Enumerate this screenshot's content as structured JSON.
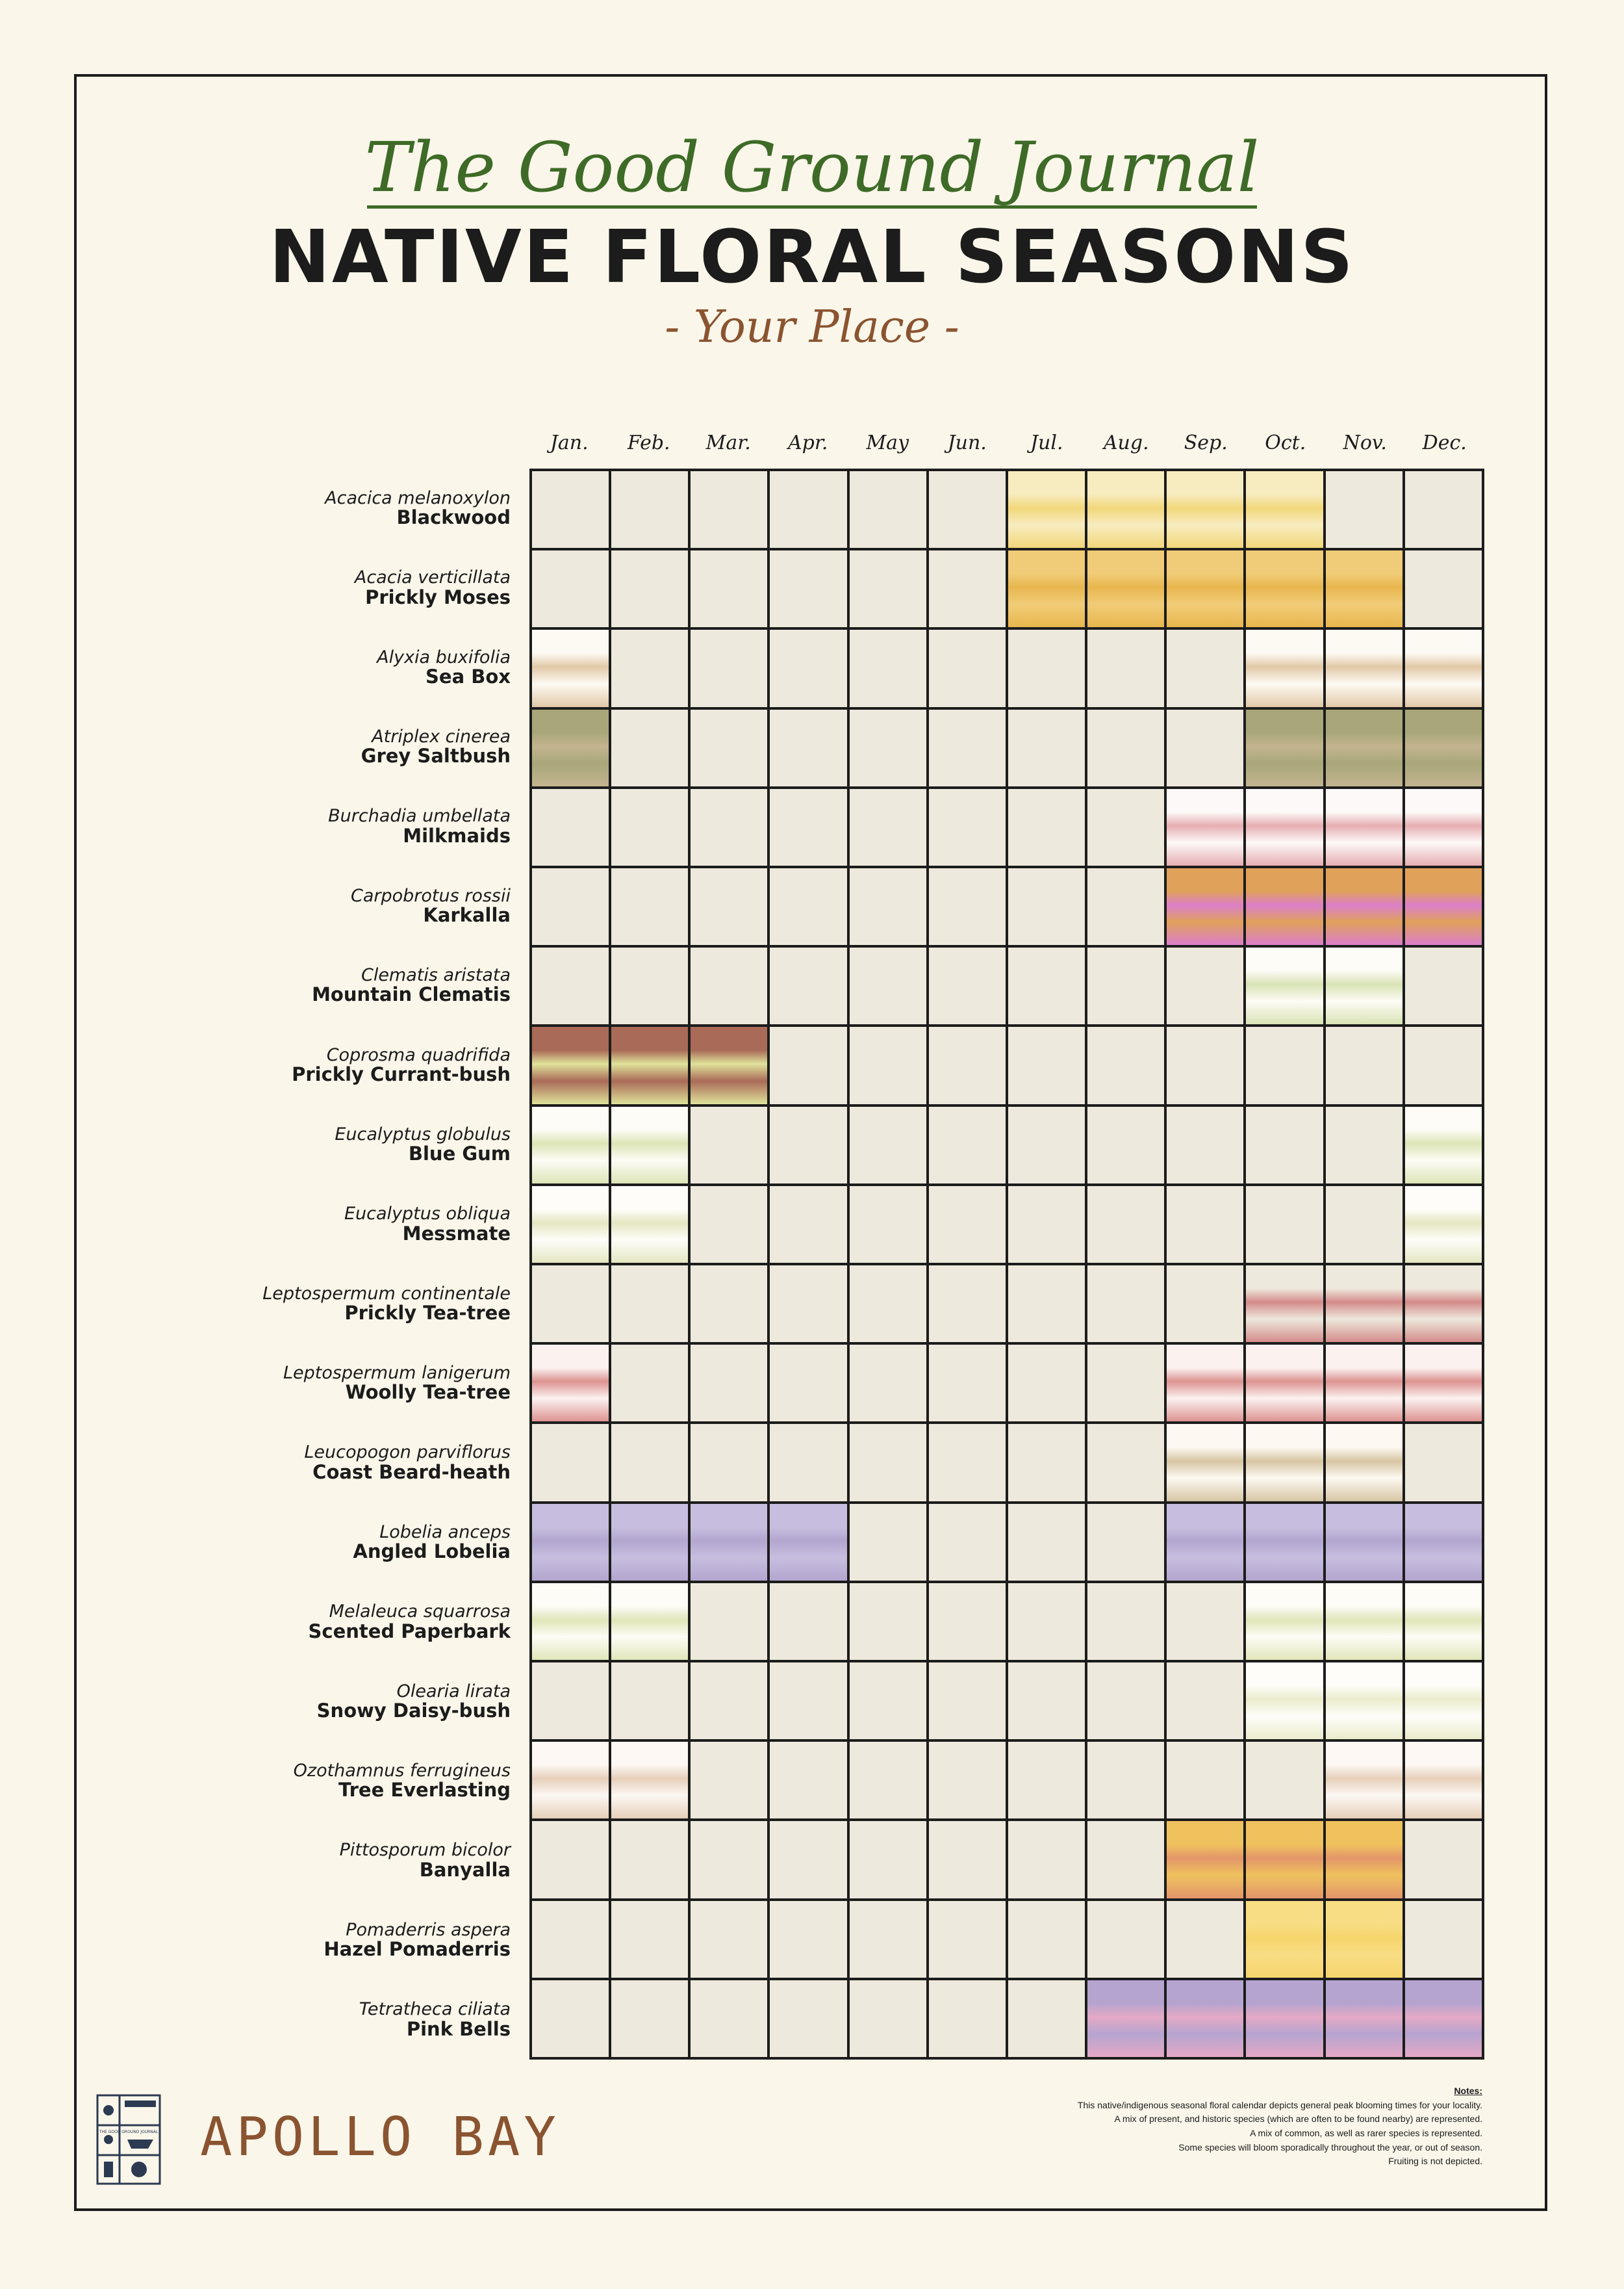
{
  "header": {
    "journal": "The Good Ground Journal",
    "title": "NATIVE FLORAL SEASONS",
    "subtitle": "- Your Place -"
  },
  "months": [
    "Jan.",
    "Feb.",
    "Mar.",
    "Apr.",
    "May",
    "Jun.",
    "Jul.",
    "Aug.",
    "Sep.",
    "Oct.",
    "Nov.",
    "Dec."
  ],
  "species": [
    {
      "scientific": "Acacica melanoxylon",
      "common": "Blackwood",
      "months": [
        7,
        8,
        9,
        10
      ],
      "color": "#f2d77a",
      "base": "#f7ecc0"
    },
    {
      "scientific": "Acacia verticillata",
      "common": "Prickly Moses",
      "months": [
        7,
        8,
        9,
        10,
        11
      ],
      "color": "#e8b64e",
      "base": "#f1cc78"
    },
    {
      "scientific": "Alyxia buxifolia",
      "common": "Sea Box",
      "months": [
        1,
        10,
        11,
        12
      ],
      "color": "#e2c9a8",
      "base": "#fdfaf3"
    },
    {
      "scientific": "Atriplex cinerea",
      "common": "Grey Saltbush",
      "months": [
        1,
        10,
        11,
        12
      ],
      "color": "#c3b48f",
      "base": "#a9a77a"
    },
    {
      "scientific": "Burchadia umbellata",
      "common": "Milkmaids",
      "months": [
        9,
        10,
        11,
        12
      ],
      "color": "#e6aeb1",
      "base": "#fdf9f8"
    },
    {
      "scientific": "Carpobrotus rossii",
      "common": "Karkalla",
      "months": [
        9,
        10,
        11,
        12
      ],
      "color": "#dc7fcb",
      "base": "#e0a15a"
    },
    {
      "scientific": "Clematis aristata",
      "common": "Mountain Clematis",
      "months": [
        10,
        11
      ],
      "color": "#d9e2b5",
      "base": "#fdfcf6"
    },
    {
      "scientific": "Coprosma quadrifida",
      "common": "Prickly Currant-bush",
      "months": [
        1,
        2,
        3
      ],
      "color": "#dfe39a",
      "base": "#a96a57"
    },
    {
      "scientific": "Eucalyptus globulus",
      "common": "Blue Gum",
      "months": [
        1,
        2,
        12
      ],
      "color": "#dde5b7",
      "base": "#fdfcf6"
    },
    {
      "scientific": "Eucalyptus obliqua",
      "common": "Messmate",
      "months": [
        1,
        2,
        12
      ],
      "color": "#e5e7c2",
      "base": "#fefdf9"
    },
    {
      "scientific": "Leptospermum continentale",
      "common": "Prickly Tea-tree",
      "months": [
        10,
        11,
        12
      ],
      "color": "#d48b8a",
      "base": "#eee9dd"
    },
    {
      "scientific": "Leptospermum lanigerum",
      "common": "Woolly Tea-tree",
      "months": [
        1,
        9,
        10,
        11,
        12
      ],
      "color": "#dd9391",
      "base": "#fbf2f0"
    },
    {
      "scientific": "Leucopogon parviflorus",
      "common": "Coast Beard-heath",
      "months": [
        9,
        10,
        11
      ],
      "color": "#d7c5a3",
      "base": "#fdf9f2"
    },
    {
      "scientific": "Lobelia anceps",
      "common": "Angled Lobelia",
      "months": [
        1,
        2,
        3,
        4,
        9,
        10,
        11,
        12
      ],
      "color": "#b3a6cf",
      "base": "#c7bedf"
    },
    {
      "scientific": "Melaleuca squarrosa",
      "common": "Scented Paperbark",
      "months": [
        1,
        2,
        10,
        11,
        12
      ],
      "color": "#e1e6b9",
      "base": "#fdfcf6"
    },
    {
      "scientific": "Olearia lirata",
      "common": "Snowy Daisy-bush",
      "months": [
        10,
        11,
        12
      ],
      "color": "#ebeccc",
      "base": "#fefdfa"
    },
    {
      "scientific": "Ozothamnus ferrugineus",
      "common": "Tree Everlasting",
      "months": [
        1,
        2,
        11,
        12
      ],
      "color": "#e6cfba",
      "base": "#fdf8f3"
    },
    {
      "scientific": "Pittosporum bicolor",
      "common": "Banyalla",
      "months": [
        9,
        10,
        11
      ],
      "color": "#e3956a",
      "base": "#efc25e"
    },
    {
      "scientific": "Pomaderris aspera",
      "common": "Hazel Pomaderris",
      "months": [
        10,
        11
      ],
      "color": "#f6d56c",
      "base": "#f8dd84"
    },
    {
      "scientific": "Tetratheca ciliata",
      "common": "Pink Bells",
      "months": [
        8,
        9,
        10,
        11,
        12
      ],
      "color": "#e5a9c5",
      "base": "#b6a4d0"
    }
  ],
  "empty_cell_color": "#eee9dd",
  "notes": {
    "heading": "Notes:",
    "lines": [
      "This native/indigenous seasonal floral calendar depicts general peak blooming times for your locality.",
      "A mix of present, and historic species (which are often to be found nearby) are represented.",
      "A mix of common, as well as rarer species is represented.",
      "Some species will bloom sporadically throughout the year, or out of season.",
      "Fruiting is not depicted."
    ]
  },
  "footer": {
    "place": "APOLLO BAY",
    "logo_text": "THE GOOD GROUND JOURNAL"
  }
}
